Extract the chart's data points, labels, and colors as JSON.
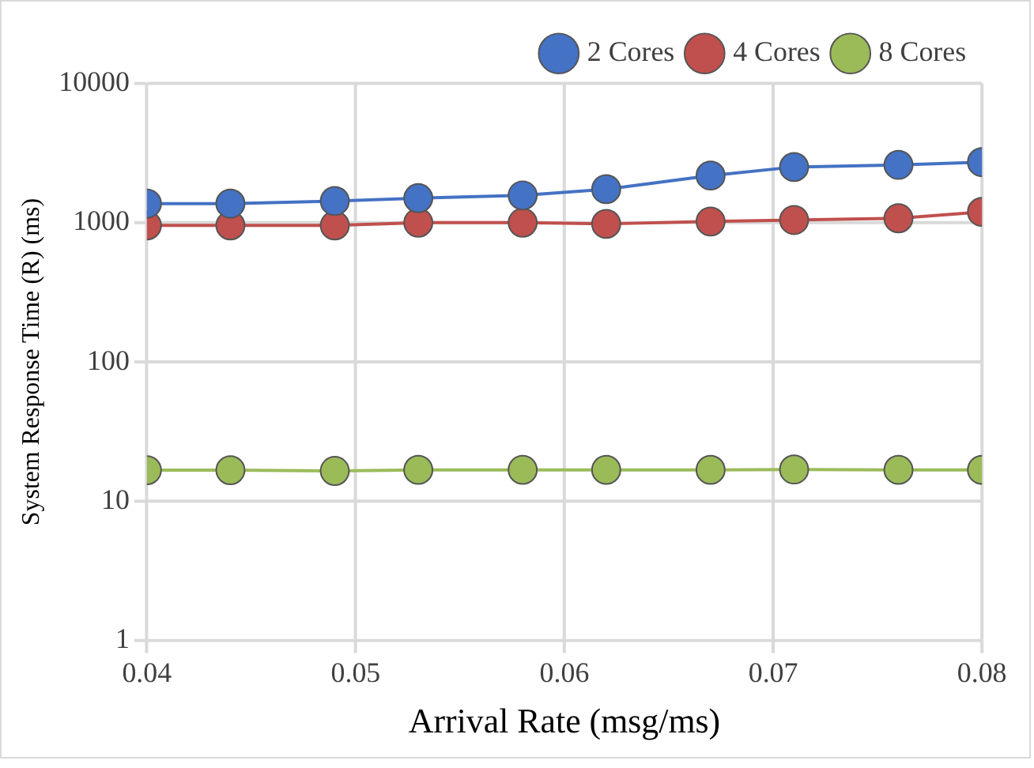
{
  "chart_data": {
    "type": "line",
    "xlabel": "Arrival Rate (msg/ms)",
    "ylabel": "System Response Time (R) (ms)",
    "x": [
      0.04,
      0.044,
      0.049,
      0.053,
      0.058,
      0.062,
      0.067,
      0.071,
      0.076,
      0.08
    ],
    "series": [
      {
        "name": "2 Cores",
        "color": "#4472c4",
        "values": [
          1370,
          1370,
          1430,
          1500,
          1570,
          1740,
          2180,
          2510,
          2600,
          2720
        ]
      },
      {
        "name": "4 Cores",
        "color": "#c0504d",
        "values": [
          955,
          955,
          955,
          1000,
          1000,
          980,
          1020,
          1045,
          1075,
          1195
        ]
      },
      {
        "name": "8 Cores",
        "color": "#9bbb59",
        "values": [
          16.7,
          16.7,
          16.5,
          16.8,
          16.8,
          16.8,
          16.8,
          16.9,
          16.8,
          16.8
        ]
      }
    ],
    "xlim": [
      0.04,
      0.08
    ],
    "xticks": [
      0.04,
      0.05,
      0.06,
      0.07,
      0.08
    ],
    "ylim": [
      1,
      10000
    ],
    "yticks": [
      1,
      10,
      100,
      1000,
      10000
    ],
    "log": "y",
    "grid": true,
    "legend": "top right",
    "marker": "circle",
    "line_style": "solid"
  }
}
